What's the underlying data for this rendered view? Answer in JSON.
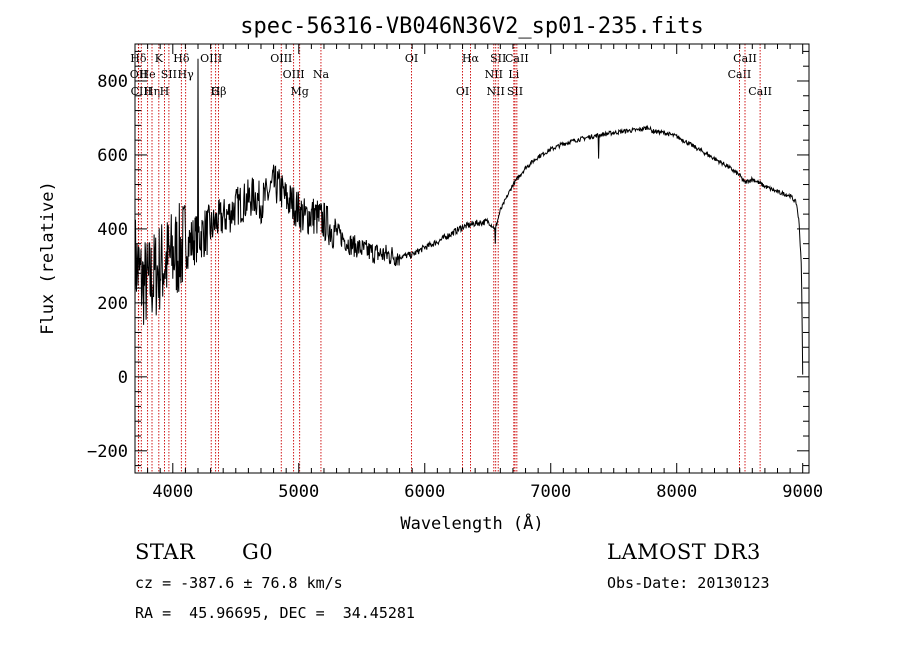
{
  "chart_data": {
    "type": "line",
    "title": "spec-56316-VB046N36V2_sp01-235.fits",
    "xlabel": "Wavelength (Å)",
    "ylabel": "Flux (relative)",
    "xlim": [
      3700,
      9050
    ],
    "ylim": [
      -260,
      900
    ],
    "x_ticks": [
      4000,
      5000,
      6000,
      7000,
      8000,
      9000
    ],
    "y_ticks": [
      -200,
      0,
      200,
      400,
      600,
      800
    ],
    "series": [
      {
        "name": "flux",
        "x": [
          3700,
          3750,
          3800,
          3850,
          3900,
          3950,
          4000,
          4050,
          4100,
          4150,
          4200,
          4250,
          4300,
          4350,
          4400,
          4450,
          4500,
          4550,
          4600,
          4650,
          4700,
          4750,
          4800,
          4850,
          4900,
          4950,
          5000,
          5050,
          5100,
          5150,
          5200,
          5300,
          5400,
          5500,
          5600,
          5700,
          5800,
          5900,
          6000,
          6100,
          6200,
          6300,
          6400,
          6500,
          6560,
          6600,
          6700,
          6800,
          6900,
          7000,
          7100,
          7200,
          7300,
          7400,
          7500,
          7600,
          7700,
          7780,
          7800,
          7900,
          8000,
          8100,
          8200,
          8300,
          8400,
          8500,
          8540,
          8600,
          8700,
          8800,
          8900,
          8950,
          8970,
          8990,
          9000
        ],
        "y": [
          320,
          260,
          250,
          270,
          300,
          310,
          330,
          340,
          360,
          365,
          380,
          390,
          400,
          420,
          430,
          440,
          460,
          470,
          480,
          490,
          470,
          490,
          520,
          510,
          480,
          470,
          450,
          430,
          440,
          430,
          420,
          390,
          360,
          345,
          335,
          330,
          325,
          330,
          350,
          365,
          385,
          405,
          415,
          420,
          400,
          450,
          520,
          565,
          595,
          615,
          630,
          640,
          648,
          655,
          660,
          665,
          668,
          675,
          665,
          660,
          650,
          630,
          610,
          590,
          570,
          545,
          525,
          535,
          515,
          500,
          490,
          470,
          420,
          300,
          5
        ]
      }
    ],
    "spectral_lines": [
      {
        "label": "Hδ",
        "wavelength": 3727,
        "row": 1
      },
      {
        "label": "OII",
        "wavelength": 3729,
        "row": 2
      },
      {
        "label": "CIII",
        "wavelength": 3750,
        "row": 3
      },
      {
        "label": "He",
        "wavelength": 3800,
        "row": 2
      },
      {
        "label": "Hη",
        "wavelength": 3835,
        "row": 3
      },
      {
        "label": "K",
        "wavelength": 3889,
        "row": 1
      },
      {
        "label": "H",
        "wavelength": 3934,
        "row": 3
      },
      {
        "label": "SII",
        "wavelength": 3969,
        "row": 2
      },
      {
        "label": "Hδ",
        "wavelength": 4068,
        "row": 1
      },
      {
        "label": "Hγ",
        "wavelength": 4102,
        "row": 2
      },
      {
        "label": "OIII",
        "wavelength": 4305,
        "row": 1
      },
      {
        "label": "G",
        "wavelength": 4340,
        "row": 3
      },
      {
        "label": "Hβ",
        "wavelength": 4363,
        "row": 3
      },
      {
        "label": "OIII",
        "wavelength": 4861,
        "row": 1
      },
      {
        "label": "OIII",
        "wavelength": 4959,
        "row": 2
      },
      {
        "label": "Mg",
        "wavelength": 5007,
        "row": 3
      },
      {
        "label": "Na",
        "wavelength": 5176,
        "row": 2
      },
      {
        "label": "OI",
        "wavelength": 5895,
        "row": 1
      },
      {
        "label": "OI",
        "wavelength": 6300,
        "row": 3
      },
      {
        "label": "Hα",
        "wavelength": 6363,
        "row": 1
      },
      {
        "label": "NII",
        "wavelength": 6548,
        "row": 2
      },
      {
        "label": "NII",
        "wavelength": 6563,
        "row": 3
      },
      {
        "label": "SII",
        "wavelength": 6583,
        "row": 1
      },
      {
        "label": "Li",
        "wavelength": 6707,
        "row": 2
      },
      {
        "label": "SII",
        "wavelength": 6716,
        "row": 3
      },
      {
        "label": "CaII",
        "wavelength": 6731,
        "row": 1
      },
      {
        "label": "CaII",
        "wavelength": 8498,
        "row": 2
      },
      {
        "label": "CaII",
        "wavelength": 8542,
        "row": 1
      },
      {
        "label": "CaII",
        "wavelength": 8662,
        "row": 3
      }
    ]
  },
  "info": {
    "object_class": "STAR",
    "subclass": "G0",
    "survey": "LAMOST DR3",
    "redshift": "cz = -387.6 ± 76.8 km/s",
    "obs_date": "Obs-Date: 20130123",
    "coords": "RA =  45.96695, DEC =  34.45281"
  },
  "colors": {
    "line": "#000000",
    "marker": "#cc0000"
  }
}
